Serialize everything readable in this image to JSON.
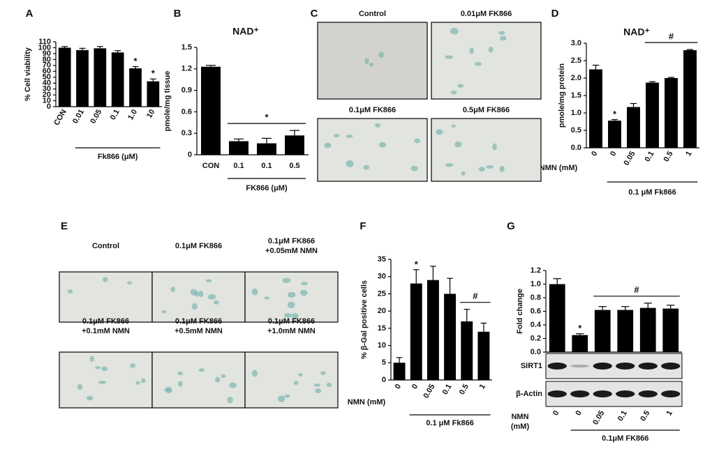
{
  "chart_data": [
    {
      "type": "bar",
      "panel": "A",
      "ylabel": "% Cell viability",
      "categories": [
        "CON",
        "0.01",
        "0.05",
        "0.1",
        "1.0",
        "10"
      ],
      "values": [
        100,
        96,
        99,
        92,
        65,
        43
      ],
      "errors": [
        2,
        3,
        3,
        3,
        3,
        4
      ],
      "color": "#000000",
      "ylim": [
        0,
        110
      ],
      "yticks": [
        0,
        10,
        20,
        30,
        40,
        50,
        60,
        70,
        80,
        90,
        100,
        110
      ],
      "xlabel": "Fk866 (μM)",
      "annotations": [
        {
          "text": "*",
          "categories": [
            4
          ]
        },
        {
          "text": "*",
          "categories": [
            5
          ]
        }
      ]
    },
    {
      "type": "bar",
      "panel": "B",
      "title": "NAD⁺",
      "ylabel": "pmole/mg tissue",
      "categories": [
        "CON",
        "0.1",
        "0.1",
        "0.5"
      ],
      "values": [
        1.23,
        0.19,
        0.16,
        0.27
      ],
      "errors": [
        0.02,
        0.03,
        0.07,
        0.07
      ],
      "color": "#000000",
      "ylim": [
        0,
        1.5
      ],
      "yticks": [
        0,
        0.3,
        0.6,
        0.9,
        1.2,
        1.5
      ],
      "xlabel": "FK866 (μM)",
      "annotations": [
        {
          "text": "*",
          "categories": [
            1,
            3
          ]
        }
      ]
    },
    {
      "type": "bar",
      "panel": "D",
      "title": "NAD⁺",
      "ylabel": "pmole/mg protein",
      "x_prefix": "NMN (mM)",
      "categories": [
        "0",
        "0",
        "0.05",
        "0.1",
        "0.5",
        "1"
      ],
      "values": [
        2.25,
        0.78,
        1.17,
        1.87,
        2.0,
        2.8
      ],
      "errors": [
        0.12,
        0.03,
        0.1,
        0.03,
        0.02,
        0.02
      ],
      "color": "#000000",
      "ylim": [
        0,
        3.0
      ],
      "yticks": [
        {
          "value": 0,
          "label": "0.0"
        },
        0.5,
        {
          "value": 1,
          "label": "1.0"
        },
        1.5,
        {
          "value": 2,
          "label": "2.0"
        },
        2.5,
        {
          "value": 3,
          "label": "3.0"
        }
      ],
      "xlabel": "0.1 μM Fk866",
      "annotations": [
        {
          "text": "*",
          "categories": [
            1
          ]
        },
        {
          "text": "#",
          "categories": [
            3,
            5
          ]
        }
      ]
    },
    {
      "type": "bar",
      "panel": "F",
      "ylabel": "% β-Gal positive cells",
      "x_prefix": "NMN (mM)",
      "categories": [
        "0",
        "0",
        "0.05",
        "0.1",
        "0.5",
        "1"
      ],
      "values": [
        5,
        28,
        29,
        25,
        17,
        14
      ],
      "errors": [
        1.5,
        4,
        4,
        4.5,
        3.5,
        2.5
      ],
      "color": "#000000",
      "ylim": [
        0,
        35
      ],
      "yticks": [
        0,
        5,
        10,
        15,
        20,
        25,
        30,
        35
      ],
      "xlabel": "0.1 μM Fk866",
      "annotations": [
        {
          "text": "*",
          "categories": [
            1
          ]
        },
        {
          "text": "#",
          "categories": [
            4,
            5
          ]
        }
      ]
    },
    {
      "type": "bar",
      "panel": "G",
      "ylabel": "Fold change",
      "x_prefix": [
        "NMN",
        "(mM)"
      ],
      "categories": [
        "0",
        "0",
        "0.05",
        "0.1",
        "0.5",
        "1"
      ],
      "values": [
        1.0,
        0.25,
        0.62,
        0.62,
        0.65,
        0.64
      ],
      "errors": [
        0.08,
        0.02,
        0.05,
        0.05,
        0.07,
        0.05
      ],
      "color": "#000000",
      "ylim": [
        0,
        1.2
      ],
      "yticks": [
        {
          "value": 0,
          "label": "0.0"
        },
        0.2,
        0.4,
        0.6,
        0.8,
        {
          "value": 1,
          "label": "1.0"
        },
        1.2
      ],
      "xlabel": "0.1μM FK866",
      "annotations": [
        {
          "text": "*",
          "categories": [
            1
          ]
        },
        {
          "text": "#",
          "categories": [
            2,
            5
          ]
        }
      ],
      "blots": [
        "SIRT1",
        "β-Actin"
      ]
    }
  ],
  "image_panels": [
    {
      "panel": "C",
      "images": [
        [
          "Control"
        ],
        [
          "0.01μM FK866"
        ],
        [
          "0.1μM FK866"
        ],
        [
          "0.5μM FK866"
        ]
      ]
    },
    {
      "panel": "E",
      "images": [
        [
          "Control"
        ],
        [
          "0.1μM FK866"
        ],
        [
          "0.1μM FK866",
          "+0.05mM NMN"
        ],
        [
          "0.1μM FK866",
          "+0.1mM NMN"
        ],
        [
          "0.1μM FK866",
          "+0.5mM NMN"
        ],
        [
          "0.1μM FK866",
          "+1.0mM NMN"
        ]
      ]
    }
  ]
}
